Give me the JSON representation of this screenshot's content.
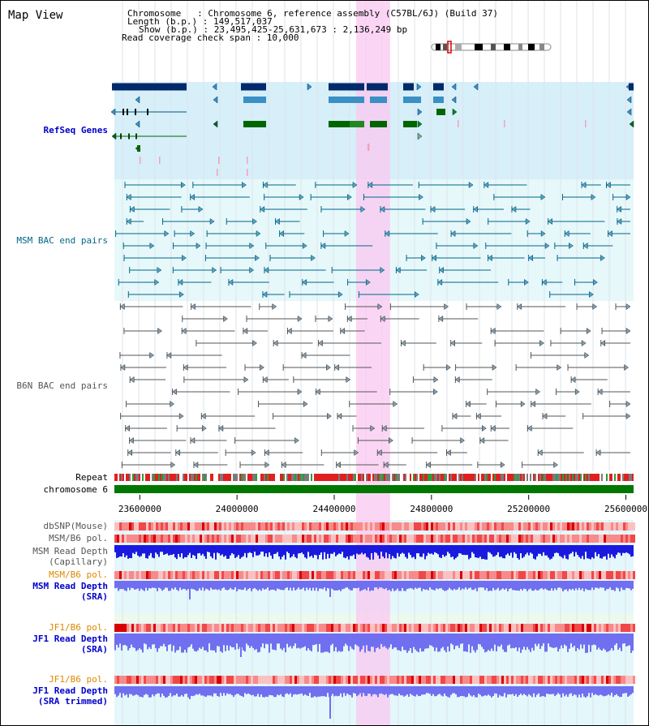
{
  "title": "Map View",
  "header": {
    "lines": [
      "Chromosome   : Chromosome 6, reference assembly (C57BL/6J) (Build 37)",
      "Length (b.p.) : 149,517,037",
      "Show (b.p.) : 23,495,425-25,631,673 : 2,136,249 bp",
      "Read coverage check span : 10,000"
    ]
  },
  "region": {
    "start": 23495425,
    "end": 25631673
  },
  "highlight": {
    "start": 24490000,
    "end": 24630000
  },
  "axis": {
    "ticks": [
      "23600000",
      "24000000",
      "24400000",
      "24800000",
      "25200000",
      "25600000"
    ],
    "tick_values": [
      23600000,
      24000000,
      24400000,
      24800000,
      25200000,
      25600000
    ]
  },
  "tracks": {
    "refseq": "RefSeq Genes",
    "msm_bac": "MSM BAC end pairs",
    "b6n_bac": "B6N BAC end pairs",
    "repeat": "Repeat",
    "chromosome": "chromosome 6",
    "dbsnp": "dbSNP(Mouse)",
    "msm_b6_pol": "MSM/B6 pol.",
    "msm_depth_cap_1": "MSM Read Depth",
    "msm_depth_cap_2": "(Capillary)",
    "msm_b6_pol2": "MSM/B6 pol.",
    "msm_depth_sra_1": "MSM Read Depth",
    "msm_depth_sra_2": "(SRA)",
    "jf1_b6_pol": "JF1/B6 pol.",
    "jf1_depth_sra_1": "JF1 Read Depth",
    "jf1_depth_sra_2": "(SRA)",
    "jf1_b6_pol2": "JF1/B6 pol.",
    "jf1_depth_trim_1": "JF1 Read Depth",
    "jf1_depth_trim_2": "(SRA trimmed)"
  },
  "colors": {
    "refseq_label": "#0000cc",
    "msm_label": "#006688",
    "b6n_label": "#555555",
    "orange_label": "#dd8800",
    "blue_label": "#0000cc",
    "highlight": "#f9c8f0",
    "gene_dark": "#002a6a",
    "gene_mid": "#3a8fc4",
    "gene_green": "#006600",
    "chromosome": "#007700",
    "depth_cap": "#1a1adf",
    "depth_sra": "#6f6ff0"
  }
}
